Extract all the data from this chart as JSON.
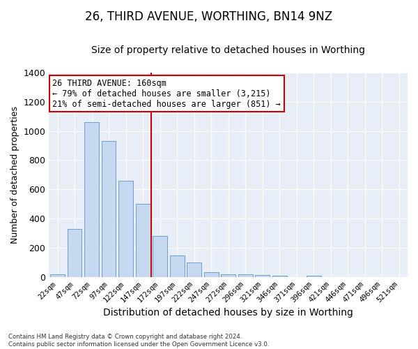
{
  "title": "26, THIRD AVENUE, WORTHING, BN14 9NZ",
  "subtitle": "Size of property relative to detached houses in Worthing",
  "xlabel": "Distribution of detached houses by size in Worthing",
  "ylabel": "Number of detached properties",
  "categories": [
    "22sqm",
    "47sqm",
    "72sqm",
    "97sqm",
    "122sqm",
    "147sqm",
    "172sqm",
    "197sqm",
    "222sqm",
    "247sqm",
    "272sqm",
    "296sqm",
    "321sqm",
    "346sqm",
    "371sqm",
    "396sqm",
    "421sqm",
    "446sqm",
    "471sqm",
    "496sqm",
    "521sqm"
  ],
  "values": [
    20,
    330,
    1060,
    930,
    660,
    500,
    280,
    150,
    100,
    35,
    20,
    20,
    15,
    10,
    0,
    10,
    0,
    0,
    0,
    0,
    0
  ],
  "bar_color": "#c5d8f0",
  "bar_edge_color": "#6a9fd0",
  "reference_line_color": "#cc0000",
  "annotation_line1": "26 THIRD AVENUE: 160sqm",
  "annotation_line2": "← 79% of detached houses are smaller (3,215)",
  "annotation_line3": "21% of semi-detached houses are larger (851) →",
  "annotation_box_facecolor": "#ffffff",
  "annotation_box_edgecolor": "#cc0000",
  "ylim": [
    0,
    1400
  ],
  "yticks": [
    0,
    200,
    400,
    600,
    800,
    1000,
    1200,
    1400
  ],
  "background_color": "#e8eef7",
  "footer_text": "Contains HM Land Registry data © Crown copyright and database right 2024.\nContains public sector information licensed under the Open Government Licence v3.0.",
  "title_fontsize": 12,
  "subtitle_fontsize": 10,
  "bar_font_size": 8,
  "ylabel_fontsize": 9,
  "xlabel_fontsize": 10
}
